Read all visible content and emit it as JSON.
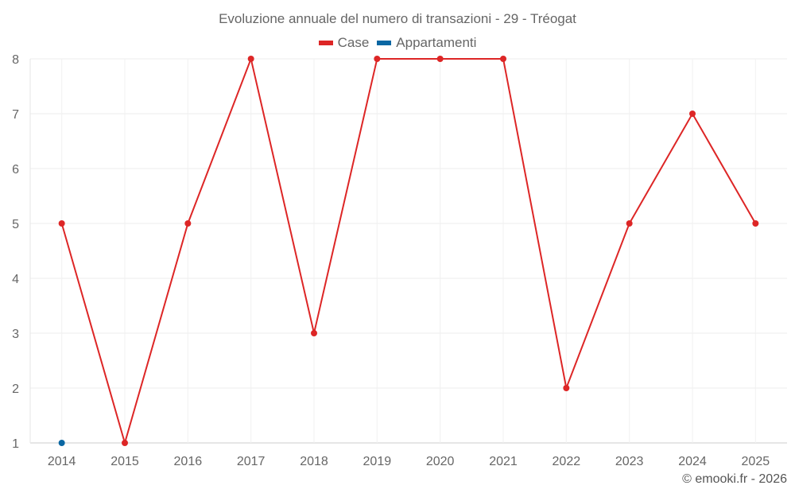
{
  "chart_data": {
    "type": "line",
    "title": "Evoluzione annuale del numero di transazioni - 29 - Tréogat",
    "categories": [
      "2014",
      "2015",
      "2016",
      "2017",
      "2018",
      "2019",
      "2020",
      "2021",
      "2022",
      "2023",
      "2024",
      "2025"
    ],
    "series": [
      {
        "name": "Case",
        "color": "#dd2626",
        "values": [
          5,
          1,
          5,
          8,
          3,
          8,
          8,
          8,
          2,
          5,
          7,
          5
        ]
      },
      {
        "name": "Appartamenti",
        "color": "#0a67a3",
        "values": [
          1,
          null,
          null,
          null,
          null,
          null,
          null,
          null,
          null,
          null,
          null,
          null
        ]
      }
    ],
    "yticks": [
      "1",
      "2",
      "3",
      "4",
      "5",
      "6",
      "7",
      "8"
    ],
    "ylim": [
      1,
      8
    ],
    "xlabel": "",
    "ylabel": "",
    "grid": true,
    "legend": "top-center"
  },
  "credit": "© emooki.fr - 2026"
}
